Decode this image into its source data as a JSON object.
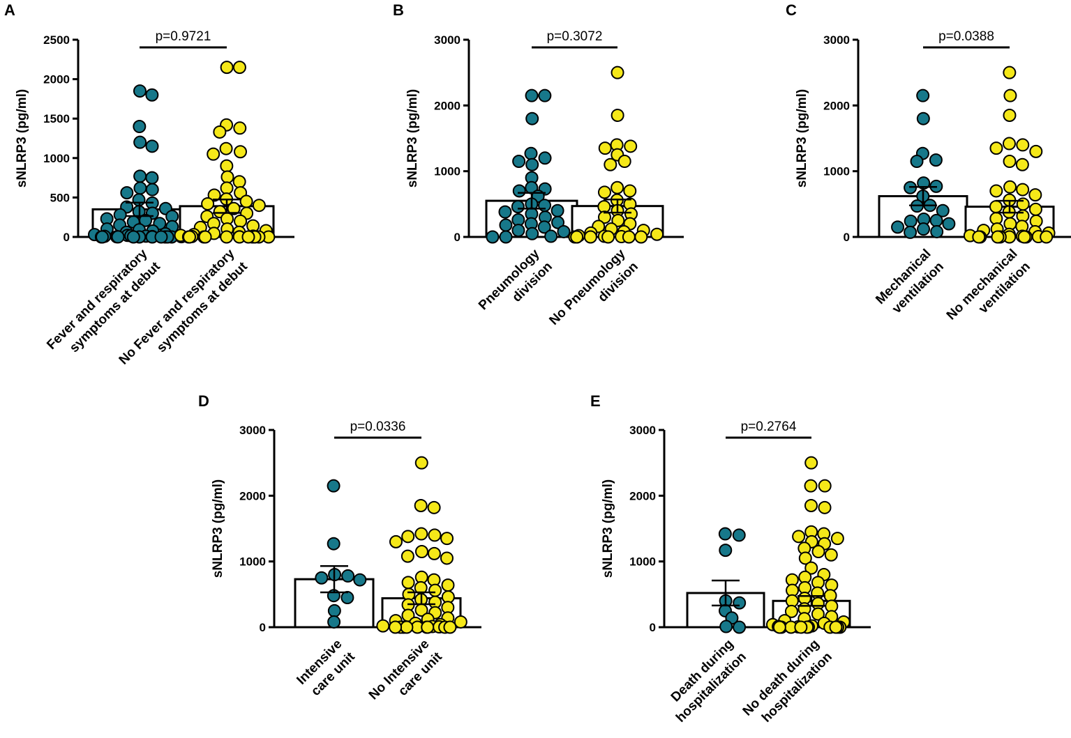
{
  "colors": {
    "group1": "#17788a",
    "group2": "#f5e819",
    "axis": "#000000",
    "bar_fill": "#ffffff"
  },
  "chart_data": [
    {
      "panel": "A",
      "type": "bar",
      "title": "",
      "ylabel": "sNLRP3 (pg/ml)",
      "ylim": [
        0,
        2500
      ],
      "yticks": [
        0,
        500,
        1000,
        1500,
        2000,
        2500
      ],
      "p_value": "p=0.9721",
      "groups": [
        {
          "name": "Fever and respiratory symptoms at debut",
          "label_lines": [
            "Fever and respiratory",
            "symptoms at debut"
          ],
          "mean": 350,
          "sem": 85,
          "points": [
            1850,
            1800,
            1400,
            1200,
            1150,
            770,
            750,
            620,
            600,
            560,
            470,
            430,
            380,
            360,
            320,
            300,
            280,
            260,
            230,
            210,
            190,
            170,
            150,
            130,
            100,
            90,
            75,
            60,
            50,
            40,
            30,
            20,
            15,
            10,
            8,
            5,
            3,
            2,
            1,
            0,
            0,
            0,
            0,
            0,
            0,
            0,
            0,
            0
          ]
        },
        {
          "name": "No Fever and respiratory symptoms at debut",
          "label_lines": [
            "No Fever and respiratory",
            "symptoms at debut"
          ],
          "mean": 390,
          "sem": 85,
          "points": [
            2150,
            2150,
            1420,
            1380,
            1330,
            1120,
            1080,
            1050,
            900,
            760,
            700,
            620,
            560,
            530,
            480,
            450,
            420,
            400,
            360,
            320,
            300,
            260,
            230,
            200,
            170,
            140,
            120,
            100,
            80,
            60,
            45,
            30,
            20,
            10,
            5,
            2,
            0,
            0,
            0,
            0,
            0,
            0,
            0,
            0,
            0,
            0,
            0
          ]
        }
      ]
    },
    {
      "panel": "B",
      "type": "bar",
      "title": "",
      "ylabel": "sNLRP3 (pg/ml)",
      "ylim": [
        0,
        3000
      ],
      "yticks": [
        0,
        1000,
        2000,
        3000
      ],
      "p_value": "p=0.3072",
      "groups": [
        {
          "name": "Pneumology division",
          "label_lines": [
            "Pneumology",
            "division"
          ],
          "mean": 550,
          "sem": 120,
          "points": [
            2150,
            2150,
            1800,
            1270,
            1200,
            1150,
            1100,
            900,
            750,
            730,
            700,
            620,
            500,
            480,
            460,
            400,
            380,
            350,
            300,
            260,
            220,
            200,
            180,
            150,
            100,
            80,
            50,
            10,
            0,
            0,
            0
          ]
        },
        {
          "name": "No Pneumology division",
          "label_lines": [
            "No Pneumology",
            "division"
          ],
          "mean": 470,
          "sem": 100,
          "points": [
            2500,
            1850,
            1400,
            1380,
            1350,
            1250,
            1150,
            1100,
            750,
            700,
            680,
            560,
            500,
            460,
            400,
            350,
            300,
            250,
            200,
            160,
            120,
            100,
            80,
            60,
            40,
            20,
            10,
            5,
            0,
            0,
            0,
            0,
            0,
            0
          ]
        }
      ]
    },
    {
      "panel": "C",
      "type": "bar",
      "title": "",
      "ylabel": "sNLRP3 (pg/ml)",
      "ylim": [
        0,
        3000
      ],
      "yticks": [
        0,
        1000,
        2000,
        3000
      ],
      "p_value": "p=0.0388",
      "groups": [
        {
          "name": "Mechanical ventilation",
          "label_lines": [
            "Mechanical",
            "ventilation"
          ],
          "mean": 620,
          "sem": 140,
          "points": [
            2150,
            1800,
            1270,
            1170,
            1150,
            820,
            770,
            750,
            620,
            480,
            470,
            400,
            270,
            250,
            240,
            200,
            150,
            120,
            80,
            70
          ]
        },
        {
          "name": "No mechanical ventilation",
          "label_lines": [
            "No mechanical",
            "ventilation"
          ],
          "mean": 460,
          "sem": 90,
          "points": [
            2500,
            2150,
            1850,
            1420,
            1400,
            1350,
            1300,
            1150,
            1100,
            760,
            720,
            700,
            640,
            560,
            500,
            460,
            420,
            380,
            320,
            280,
            240,
            200,
            160,
            120,
            100,
            80,
            60,
            40,
            20,
            10,
            5,
            0,
            0,
            0,
            0,
            0,
            0,
            0,
            0
          ]
        }
      ]
    },
    {
      "panel": "D",
      "type": "bar",
      "title": "",
      "ylabel": "sNLRP3 (pg/ml)",
      "ylim": [
        0,
        3000
      ],
      "yticks": [
        0,
        1000,
        2000,
        3000
      ],
      "p_value": "p=0.0336",
      "groups": [
        {
          "name": "Intensive care unit",
          "label_lines": [
            "Intensive",
            "care unit"
          ],
          "mean": 730,
          "sem": 200,
          "points": [
            2150,
            1270,
            800,
            780,
            750,
            720,
            480,
            450,
            250,
            80
          ]
        },
        {
          "name": "No Intensive care unit",
          "label_lines": [
            "No Intensive",
            "care unit"
          ],
          "mean": 440,
          "sem": 90,
          "points": [
            2500,
            1850,
            1820,
            1420,
            1400,
            1380,
            1350,
            1300,
            1150,
            1120,
            1080,
            1050,
            760,
            720,
            680,
            640,
            600,
            560,
            500,
            460,
            420,
            380,
            340,
            300,
            260,
            220,
            180,
            140,
            120,
            100,
            80,
            60,
            40,
            20,
            10,
            5,
            0,
            0,
            0,
            0,
            0,
            0,
            0,
            0,
            0
          ]
        }
      ]
    },
    {
      "panel": "E",
      "type": "bar",
      "title": "",
      "ylabel": "sNLRP3 (pg/ml)",
      "ylim": [
        0,
        3000
      ],
      "yticks": [
        0,
        1000,
        2000,
        3000
      ],
      "p_value": "p=0.2764",
      "groups": [
        {
          "name": "Death during hospitalization",
          "label_lines": [
            "Death during",
            "hospitalization"
          ],
          "mean": 520,
          "sem": 190,
          "points": [
            1420,
            1400,
            1170,
            400,
            370,
            250,
            140,
            10,
            0
          ]
        },
        {
          "name": "No death during hospitalization",
          "label_lines": [
            "No death during",
            "hospitalization"
          ],
          "mean": 400,
          "sem": 75,
          "points": [
            2500,
            2150,
            2150,
            1850,
            1820,
            1450,
            1420,
            1380,
            1350,
            1300,
            1270,
            1200,
            1150,
            1100,
            1050,
            900,
            800,
            760,
            720,
            680,
            640,
            600,
            560,
            520,
            480,
            440,
            400,
            360,
            320,
            280,
            240,
            200,
            160,
            130,
            100,
            80,
            60,
            40,
            20,
            10,
            5,
            2,
            0,
            0,
            0,
            0,
            0,
            0,
            0,
            0,
            0
          ]
        }
      ]
    }
  ]
}
